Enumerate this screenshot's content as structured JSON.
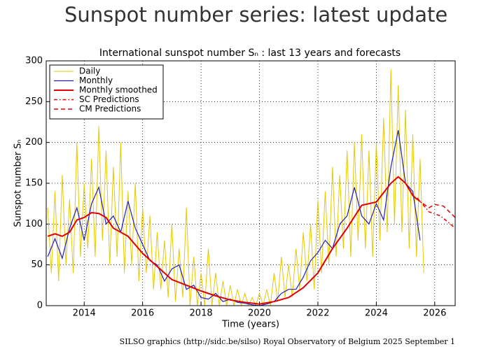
{
  "heading": "Sunspot number series: latest update",
  "chart_data": {
    "type": "line",
    "title": "International sunspot number Sₙ : last 13 years and forecasts",
    "xlabel": "Time (years)",
    "ylabel": "Sunspot number Sₙ",
    "footer": "SILSO graphics (http://sidc.be/silso)  Royal Observatory of Belgium  2025 September 1",
    "xlim": [
      2012.7,
      2026.7
    ],
    "ylim": [
      0,
      300
    ],
    "xticks": [
      2014,
      2016,
      2018,
      2020,
      2022,
      2024,
      2026
    ],
    "yticks": [
      0,
      50,
      100,
      150,
      200,
      250,
      300
    ],
    "grid": true,
    "legend": "upper left",
    "series": [
      {
        "name": "Daily",
        "color": "#e6c800",
        "style": "solid",
        "width": 1,
        "x": [
          2012.75,
          2012.875,
          2013,
          2013.125,
          2013.25,
          2013.375,
          2013.5,
          2013.625,
          2013.75,
          2013.875,
          2014,
          2014.125,
          2014.25,
          2014.375,
          2014.5,
          2014.625,
          2014.75,
          2014.875,
          2015,
          2015.125,
          2015.25,
          2015.375,
          2015.5,
          2015.625,
          2015.75,
          2015.875,
          2016,
          2016.125,
          2016.25,
          2016.375,
          2016.5,
          2016.625,
          2016.75,
          2016.875,
          2017,
          2017.125,
          2017.25,
          2017.375,
          2017.5,
          2017.625,
          2017.75,
          2017.875,
          2018,
          2018.125,
          2018.25,
          2018.375,
          2018.5,
          2018.625,
          2018.75,
          2018.875,
          2019,
          2019.125,
          2019.25,
          2019.375,
          2019.5,
          2019.625,
          2019.75,
          2019.875,
          2020,
          2020.125,
          2020.25,
          2020.375,
          2020.5,
          2020.625,
          2020.75,
          2020.875,
          2021,
          2021.125,
          2021.25,
          2021.375,
          2021.5,
          2021.625,
          2021.75,
          2021.875,
          2022,
          2022.125,
          2022.25,
          2022.375,
          2022.5,
          2022.625,
          2022.75,
          2022.875,
          2023,
          2023.125,
          2023.25,
          2023.375,
          2023.5,
          2023.625,
          2023.75,
          2023.875,
          2024,
          2024.125,
          2024.25,
          2024.375,
          2024.5,
          2024.625,
          2024.75,
          2024.875,
          2025,
          2025.125,
          2025.25,
          2025.375,
          2025.5,
          2025.625
        ],
        "values": [
          120,
          40,
          140,
          30,
          160,
          50,
          130,
          40,
          200,
          60,
          150,
          70,
          180,
          60,
          220,
          80,
          190,
          50,
          170,
          60,
          200,
          40,
          140,
          50,
          150,
          30,
          120,
          40,
          110,
          20,
          90,
          20,
          80,
          10,
          100,
          5,
          70,
          10,
          120,
          0,
          60,
          0,
          40,
          0,
          70,
          0,
          40,
          0,
          30,
          0,
          25,
          0,
          20,
          0,
          15,
          0,
          10,
          0,
          15,
          0,
          20,
          0,
          40,
          5,
          60,
          10,
          50,
          10,
          70,
          20,
          90,
          30,
          100,
          20,
          130,
          40,
          140,
          50,
          170,
          60,
          160,
          70,
          190,
          60,
          200,
          80,
          210,
          70,
          190,
          60,
          200,
          80,
          230,
          90,
          290,
          100,
          270,
          90,
          240,
          70,
          210,
          60,
          180,
          40
        ]
      },
      {
        "name": "Monthly",
        "color": "#2020c0",
        "style": "solid",
        "width": 1.2,
        "x": [
          2012.75,
          2013,
          2013.25,
          2013.5,
          2013.75,
          2014,
          2014.25,
          2014.5,
          2014.75,
          2015,
          2015.25,
          2015.5,
          2015.75,
          2016,
          2016.25,
          2016.5,
          2016.75,
          2017,
          2017.25,
          2017.5,
          2017.75,
          2018,
          2018.25,
          2018.5,
          2018.75,
          2019,
          2019.25,
          2019.5,
          2019.75,
          2020,
          2020.25,
          2020.5,
          2020.75,
          2021,
          2021.25,
          2021.5,
          2021.75,
          2022,
          2022.25,
          2022.5,
          2022.75,
          2023,
          2023.25,
          2023.5,
          2023.75,
          2024,
          2024.25,
          2024.5,
          2024.75,
          2025,
          2025.25,
          2025.5
        ],
        "values": [
          60,
          82,
          58,
          95,
          120,
          80,
          125,
          145,
          100,
          110,
          90,
          128,
          95,
          75,
          55,
          50,
          30,
          45,
          50,
          20,
          25,
          10,
          8,
          15,
          5,
          8,
          4,
          3,
          1,
          0,
          2,
          5,
          15,
          20,
          20,
          35,
          55,
          65,
          80,
          70,
          100,
          110,
          145,
          110,
          100,
          125,
          105,
          170,
          215,
          150,
          140,
          80
        ]
      },
      {
        "name": "Monthly smoothed",
        "color": "#e00000",
        "style": "solid",
        "width": 2,
        "x": [
          2012.75,
          2013,
          2013.25,
          2013.5,
          2013.75,
          2014,
          2014.25,
          2014.5,
          2014.75,
          2015,
          2015.5,
          2016,
          2016.5,
          2017,
          2017.5,
          2018,
          2018.5,
          2019,
          2019.5,
          2020,
          2020.5,
          2021,
          2021.5,
          2022,
          2022.5,
          2023,
          2023.5,
          2024,
          2024.5,
          2024.75,
          2025,
          2025.25,
          2025.4
        ],
        "values": [
          85,
          88,
          85,
          90,
          105,
          108,
          114,
          113,
          108,
          95,
          85,
          64,
          48,
          32,
          25,
          18,
          12,
          7,
          4,
          2,
          5,
          10,
          22,
          40,
          70,
          95,
          123,
          127,
          150,
          158,
          150,
          135,
          130
        ]
      },
      {
        "name": "SC Predictions",
        "color": "#e00000",
        "style": "dashdot",
        "width": 1.5,
        "x": [
          2025.4,
          2025.8,
          2026.2,
          2026.7
        ],
        "values": [
          132,
          115,
          110,
          95
        ]
      },
      {
        "name": "CM Predictions",
        "color": "#e00000",
        "style": "dashed",
        "width": 1.5,
        "x": [
          2025.4,
          2025.8,
          2026,
          2026.3,
          2026.7
        ],
        "values": [
          130,
          120,
          124,
          122,
          108
        ]
      }
    ]
  }
}
